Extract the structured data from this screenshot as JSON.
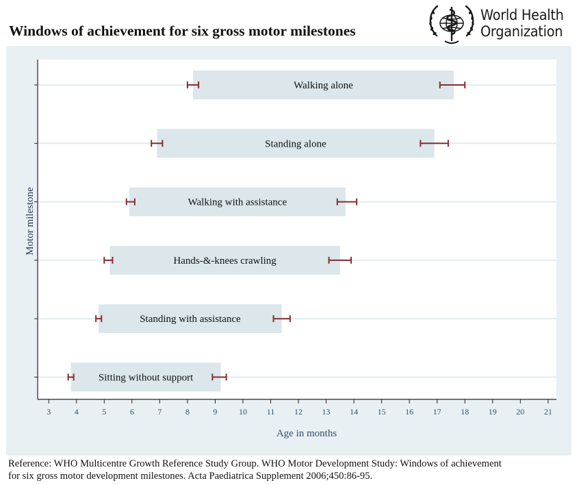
{
  "title": "Windows of achievement for six gross motor milestones",
  "logo": {
    "name": "WHO emblem",
    "line1": "World Health",
    "line2": "Organization"
  },
  "chart_data": {
    "type": "range-bar",
    "title": "Windows of achievement for six gross motor milestones",
    "xlabel": "Age in months",
    "ylabel": "Motor milestone",
    "xlim": [
      2.6,
      21.3
    ],
    "xticks": [
      3,
      4,
      5,
      6,
      7,
      8,
      9,
      10,
      11,
      12,
      13,
      14,
      15,
      16,
      17,
      18,
      19,
      20,
      21
    ],
    "grid": "horizontal",
    "series": [
      {
        "name": "Walking alone",
        "window_start": 8.2,
        "window_end": 17.6,
        "start_ci": [
          8.0,
          8.4
        ],
        "end_ci": [
          17.1,
          18.0
        ]
      },
      {
        "name": "Standing alone",
        "window_start": 6.9,
        "window_end": 16.9,
        "start_ci": [
          6.7,
          7.1
        ],
        "end_ci": [
          16.4,
          17.4
        ]
      },
      {
        "name": "Walking with assistance",
        "window_start": 5.9,
        "window_end": 13.7,
        "start_ci": [
          5.8,
          6.1
        ],
        "end_ci": [
          13.4,
          14.1
        ]
      },
      {
        "name": "Hands-&-knees crawling",
        "window_start": 5.2,
        "window_end": 13.5,
        "start_ci": [
          5.0,
          5.3
        ],
        "end_ci": [
          13.1,
          13.9
        ]
      },
      {
        "name": "Standing with assistance",
        "window_start": 4.8,
        "window_end": 11.4,
        "start_ci": [
          4.7,
          4.9
        ],
        "end_ci": [
          11.1,
          11.7
        ]
      },
      {
        "name": "Sitting without support",
        "window_start": 3.8,
        "window_end": 9.2,
        "start_ci": [
          3.7,
          3.9
        ],
        "end_ci": [
          8.9,
          9.4
        ]
      }
    ],
    "colors": {
      "bar": "#dbe7ea",
      "ci": "#8b2a32",
      "axis": "#222222",
      "grid": "#e2ebee",
      "axis_label": "#2f4f6f",
      "plot_bg": "#ffffff",
      "panel_bg": "#e8f0f3"
    }
  },
  "footer": {
    "line1": "Reference: WHO Multicentre Growth Reference Study Group. WHO Motor Development Study: Windows of achievement",
    "line2": "for six gross motor development milestones. Acta Paediatrica Supplement 2006;450:86-95."
  }
}
